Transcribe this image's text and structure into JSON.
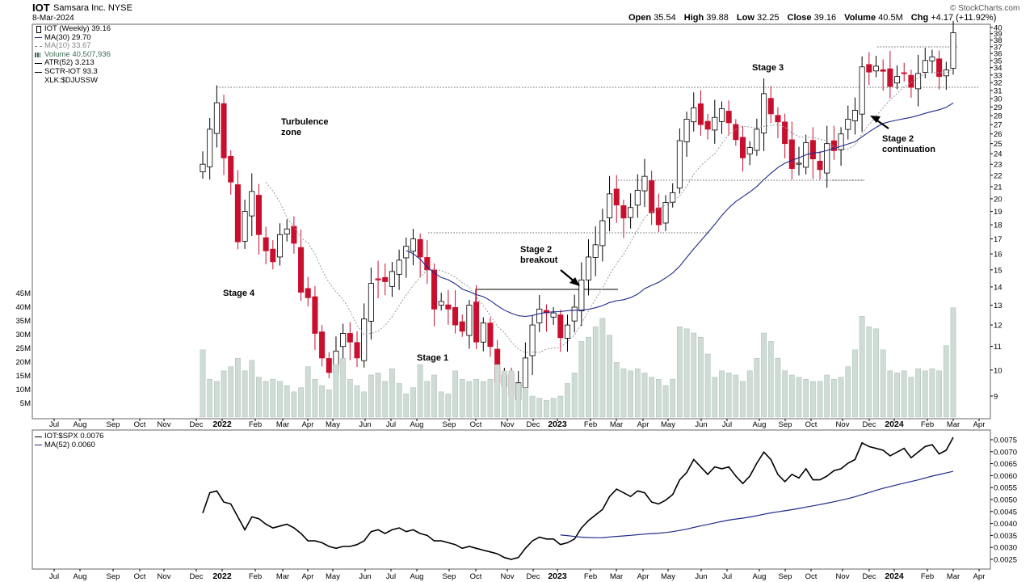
{
  "header": {
    "symbol": "IOT",
    "company": "Samsara Inc. NYSE",
    "date": "8-Mar-2024",
    "source": "© StockCharts.com",
    "open_label": "Open",
    "open": "35.54",
    "high_label": "High",
    "high": "39.88",
    "low_label": "Low",
    "low": "32.25",
    "close_label": "Close",
    "close": "39.16",
    "volume_label": "Volume",
    "volume": "40.5M",
    "chg_label": "Chg",
    "chg": "+4.17 (+11.92%)"
  },
  "legend_main": [
    {
      "text": "IOT (Weekly) 39.16",
      "color": "#000000",
      "style": "candle"
    },
    {
      "text": "MA(30) 29.70",
      "color": "#1f2a8a",
      "style": "line"
    },
    {
      "text": "MA(10) 33.67",
      "color": "#888888",
      "style": "dash"
    },
    {
      "text": "Volume 40,507,936",
      "color": "#3d6b55",
      "style": "bars"
    },
    {
      "text": "ATR(52) 3.213",
      "color": "#000000",
      "style": "line"
    },
    {
      "text": "SCTR-IOT 93.3",
      "color": "#000000",
      "style": "line"
    },
    {
      "text": "XLK:$DJUSSW",
      "color": "#000000",
      "style": "none"
    }
  ],
  "legend_lower": [
    {
      "text": "IOT:$SPX 0.0076",
      "color": "#000000"
    },
    {
      "text": "MA(52) 0.0060",
      "color": "#1f2a8a"
    }
  ],
  "annotations": [
    {
      "text": "Turbulence\nzone"
    },
    {
      "text": "Stage 4"
    },
    {
      "text": "Stage 1"
    },
    {
      "text": "Stage 2\nbreakout"
    },
    {
      "text": "Stage 3"
    },
    {
      "text": "Stage 2\ncontinuation"
    }
  ],
  "colors": {
    "up": "#ffffff",
    "down": "#c8102e",
    "ma30": "#1f2a8a",
    "ma10": "#999999",
    "volume": "#cfdcd5",
    "volume_edge": "#a9bdb2"
  },
  "chart_data": [
    {
      "type": "candlestick",
      "title": "IOT (Weekly)",
      "x_ticks": [
        "Jul",
        "Aug",
        "Sep",
        "Oct",
        "Nov",
        "Dec",
        "2022",
        "Feb",
        "Mar",
        "Apr",
        "May",
        "Jun",
        "Jul",
        "Aug",
        "Sep",
        "Oct",
        "Nov",
        "Dec",
        "2023",
        "Feb",
        "Mar",
        "Apr",
        "May",
        "Jun",
        "Jul",
        "Aug",
        "Sep",
        "Oct",
        "Nov",
        "Dec",
        "2024",
        "Feb",
        "Mar",
        "Apr"
      ],
      "y_ticks": [
        9,
        10,
        11,
        12,
        13,
        14,
        15,
        16,
        17,
        18,
        19,
        20,
        21,
        22,
        23,
        24,
        25,
        26,
        27,
        28,
        29,
        30,
        31,
        32,
        33,
        34,
        35,
        36,
        37,
        38,
        39,
        40
      ],
      "y_scale": "log",
      "ylim": [
        8.3,
        40
      ],
      "volume_ticks": [
        "5M",
        "10M",
        "15M",
        "20M",
        "25M",
        "30M",
        "35M",
        "40M",
        "45M"
      ],
      "close": [
        23.0,
        26.5,
        29.5,
        23.6,
        21.4,
        16.8,
        19.0,
        20.6,
        17.3,
        16.2,
        15.5,
        17.3,
        17.7,
        16.7,
        13.7,
        13.4,
        11.6,
        10.5,
        9.9,
        10.8,
        11.6,
        11.2,
        10.5,
        12.3,
        14.2,
        14.4,
        14.3,
        14.9,
        15.6,
        16.5,
        17.0,
        15.8,
        15.0,
        12.8,
        13.2,
        12.8,
        12.0,
        11.7,
        13.0,
        11.2,
        12.1,
        11.0,
        9.5,
        9.8,
        9.0,
        9.5,
        10.5,
        12.0,
        12.8,
        12.6,
        12.6,
        11.4,
        12.0,
        12.9,
        14.4,
        15.8,
        16.6,
        18.3,
        20.4,
        19.5,
        18.5,
        19.3,
        20.7,
        21.9,
        18.9,
        18.0,
        19.7,
        20.5,
        25.3,
        27.6,
        28.9,
        27.0,
        26.5,
        27.8,
        28.8,
        27.2,
        25.4,
        23.6,
        24.6,
        26.5,
        30.6,
        28.2,
        27.3,
        25.0,
        22.6,
        23.1,
        25.1,
        23.5,
        22.5,
        25.0,
        24.3,
        26.0,
        27.6,
        28.6,
        34.1,
        33.4,
        34.2,
        33.5,
        31.5,
        32.8,
        33.3,
        31.4,
        33.2,
        35.0,
        35.5,
        32.8,
        33.7,
        39.16
      ]
    },
    {
      "type": "line",
      "title": "IOT:$SPX",
      "y_ticks": [
        "0.0025",
        "0.0030",
        "0.0035",
        "0.0040",
        "0.0045",
        "0.0050",
        "0.0055",
        "0.0060",
        "0.0065",
        "0.0070",
        "0.0075"
      ],
      "series": [
        {
          "name": "IOT:$SPX",
          "last": "0.0076"
        },
        {
          "name": "MA(52)",
          "last": "0.0060"
        }
      ]
    }
  ]
}
